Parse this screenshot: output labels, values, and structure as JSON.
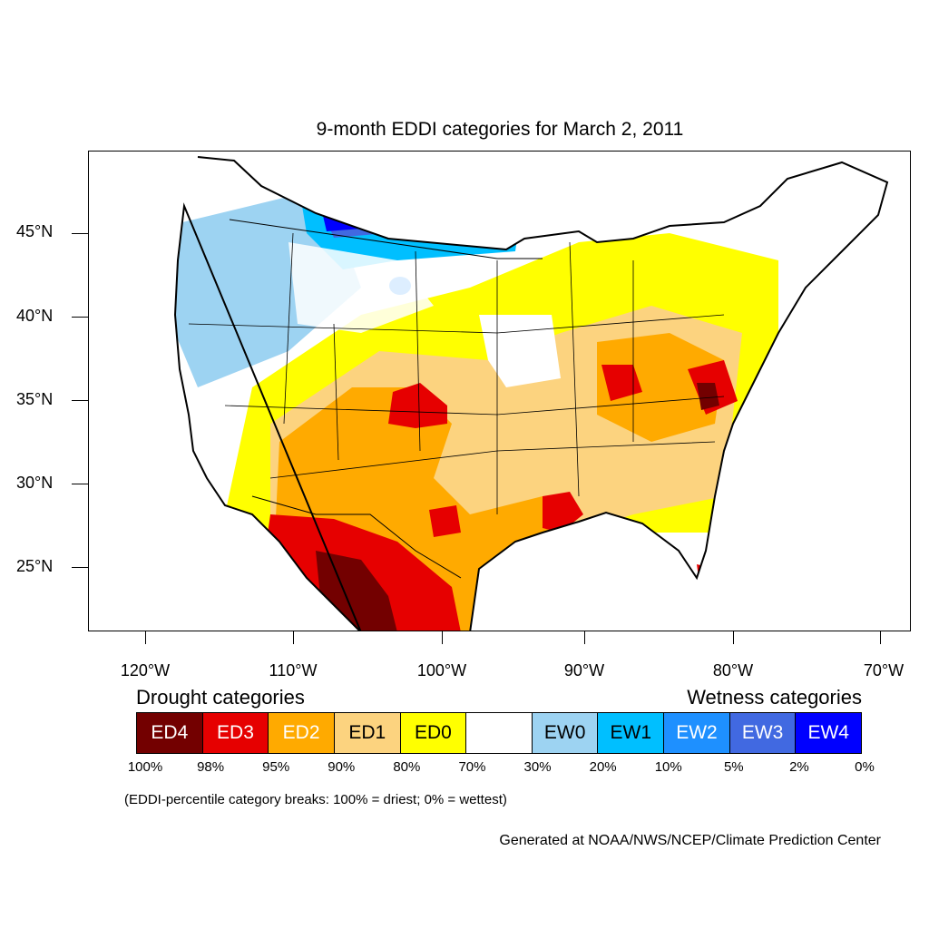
{
  "title": "9-month EDDI categories for March 2, 2011",
  "map": {
    "projection": "lambert-conformal",
    "region": "CONUS",
    "lat_labels": [
      "45°N",
      "40°N",
      "35°N",
      "30°N",
      "25°N"
    ],
    "lon_labels": [
      "120°W",
      "110°W",
      "100°W",
      "90°W",
      "80°W",
      "70°W"
    ]
  },
  "legend": {
    "drought_heading": "Drought categories",
    "wetness_heading": "Wetness categories",
    "categories": [
      {
        "label": "ED4",
        "color": "#730000",
        "text_color": "#ffffff"
      },
      {
        "label": "ED3",
        "color": "#e60000",
        "text_color": "#ffffff"
      },
      {
        "label": "ED2",
        "color": "#ffaa00",
        "text_color": "#ffffff"
      },
      {
        "label": "ED1",
        "color": "#fcd37f",
        "text_color": "#000000"
      },
      {
        "label": "ED0",
        "color": "#ffff00",
        "text_color": "#000000"
      },
      {
        "label": "",
        "color": "#ffffff",
        "text_color": "#000000"
      },
      {
        "label": "EW0",
        "color": "#9dd3f2",
        "text_color": "#000000"
      },
      {
        "label": "EW1",
        "color": "#00bfff",
        "text_color": "#000000"
      },
      {
        "label": "EW2",
        "color": "#1e90ff",
        "text_color": "#ffffff"
      },
      {
        "label": "EW3",
        "color": "#4169e1",
        "text_color": "#ffffff"
      },
      {
        "label": "EW4",
        "color": "#0000ff",
        "text_color": "#ffffff"
      }
    ],
    "percent_breaks": [
      "100%",
      "98%",
      "95%",
      "90%",
      "80%",
      "70%",
      "30%",
      "20%",
      "10%",
      "5%",
      "2%",
      "0%"
    ]
  },
  "note": "(EDDI-percentile category breaks: 100% = driest; 0% = wettest)",
  "credit": "Generated at NOAA/NWS/NCEP/Climate Prediction Center"
}
